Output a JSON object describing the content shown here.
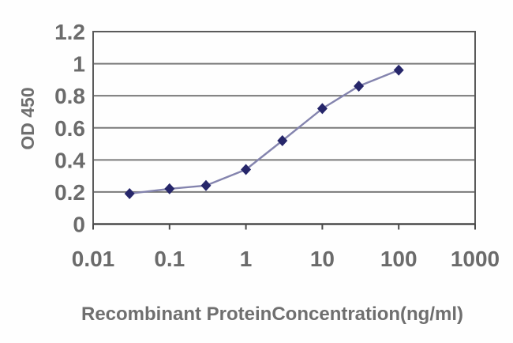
{
  "chart_data": {
    "type": "line",
    "title": "",
    "xlabel": "Recombinant ProteinConcentration(ng/ml)",
    "ylabel": "OD 450",
    "x_scale": "log",
    "xlim": [
      0.01,
      1000
    ],
    "ylim": [
      0,
      1.2
    ],
    "x_ticks": [
      0.01,
      0.1,
      1,
      10,
      100,
      1000
    ],
    "x_tick_labels": [
      "0.01",
      "0.1",
      "1",
      "10",
      "100",
      "1000"
    ],
    "y_ticks": [
      0,
      0.2,
      0.4,
      0.6,
      0.8,
      1,
      1.2
    ],
    "y_tick_labels": [
      "0",
      "0.2",
      "0.4",
      "0.6",
      "0.8",
      "1",
      "1.2"
    ],
    "grid": "horizontal",
    "legend": "none",
    "series": [
      {
        "name": "OD 450",
        "x": [
          0.03,
          0.1,
          0.3,
          1,
          3,
          10,
          30,
          100
        ],
        "y": [
          0.19,
          0.22,
          0.24,
          0.34,
          0.52,
          0.72,
          0.86,
          0.96
        ],
        "marker": "diamond",
        "line_color": "#8484ae",
        "marker_color": "#26266a"
      }
    ],
    "style": {
      "background": "#fefefe",
      "plot_background": "#ffffff",
      "grid_color": "#7a7a7a",
      "box_color": "#5a5a5a",
      "axis_color": "#4a4a4a",
      "tick_color": "#4a4a4a",
      "text_color": "#6b6b6b"
    }
  }
}
